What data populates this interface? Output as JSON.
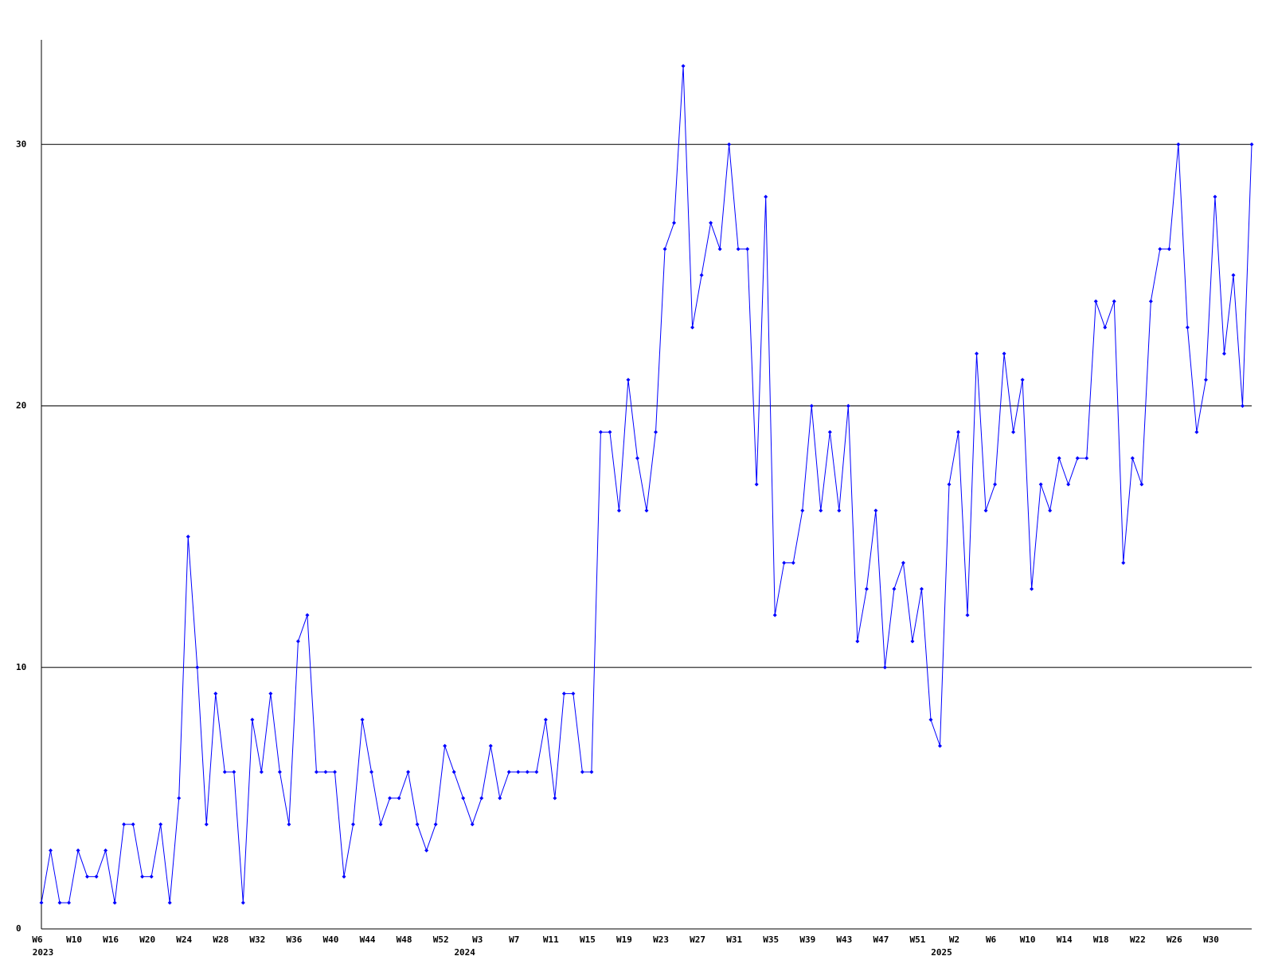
{
  "chart_data": {
    "type": "line",
    "color": "#0000ff",
    "grid_color": "#000000",
    "categories": [
      "W6",
      null,
      null,
      null,
      "W10",
      null,
      null,
      null,
      "W16",
      null,
      null,
      null,
      "W20",
      null,
      null,
      null,
      "W24",
      null,
      null,
      null,
      "W28",
      null,
      null,
      null,
      "W32",
      null,
      null,
      null,
      "W36",
      null,
      null,
      null,
      "W40",
      null,
      null,
      null,
      "W44",
      null,
      null,
      null,
      "W48",
      null,
      null,
      null,
      "W52",
      null,
      null,
      null,
      "W3",
      null,
      null,
      null,
      "W7",
      null,
      null,
      null,
      "W11",
      null,
      null,
      null,
      "W15",
      null,
      null,
      null,
      "W19",
      null,
      null,
      null,
      "W23",
      null,
      null,
      null,
      "W27",
      null,
      null,
      null,
      "W31",
      null,
      null,
      null,
      "W35",
      null,
      null,
      null,
      "W39",
      null,
      null,
      null,
      "W43",
      null,
      null,
      null,
      "W47",
      null,
      null,
      null,
      "W51",
      null,
      null,
      null,
      "W2",
      null,
      null,
      null,
      "W6",
      null,
      null,
      null,
      "W10",
      null,
      null,
      null,
      "W14",
      null,
      null,
      null,
      "W18",
      null,
      null,
      null,
      "W22",
      null,
      null,
      null,
      "W26",
      null,
      null,
      null,
      "W30",
      null,
      null,
      null,
      null
    ],
    "year_labels": [
      "2023",
      null,
      null,
      null,
      null,
      null,
      null,
      null,
      null,
      null,
      null,
      null,
      null,
      null,
      null,
      null,
      null,
      null,
      null,
      null,
      null,
      null,
      null,
      null,
      null,
      null,
      null,
      null,
      null,
      null,
      null,
      null,
      null,
      null,
      null,
      null,
      null,
      null,
      null,
      null,
      null,
      null,
      null,
      null,
      null,
      null,
      "2024",
      null,
      null,
      null,
      null,
      null,
      null,
      null,
      null,
      null,
      null,
      null,
      null,
      null,
      null,
      null,
      null,
      null,
      null,
      null,
      null,
      null,
      null,
      null,
      null,
      null,
      null,
      null,
      null,
      null,
      null,
      null,
      null,
      null,
      null,
      null,
      null,
      null,
      null,
      null,
      null,
      null,
      null,
      null,
      null,
      null,
      null,
      null,
      null,
      null,
      null,
      null,
      "2025",
      null,
      null,
      null,
      null,
      null,
      null,
      null,
      null,
      null,
      null,
      null,
      null,
      null,
      null,
      null,
      null,
      null,
      null,
      null,
      null,
      null,
      null,
      null,
      null,
      null,
      null,
      null,
      null,
      null,
      null,
      null,
      null,
      null,
      null
    ],
    "values": [
      1,
      3,
      1,
      1,
      3,
      2,
      2,
      3,
      1,
      4,
      4,
      2,
      2,
      4,
      1,
      5,
      15,
      10,
      4,
      9,
      6,
      6,
      1,
      8,
      6,
      9,
      6,
      4,
      11,
      12,
      6,
      6,
      6,
      2,
      4,
      8,
      6,
      4,
      5,
      5,
      6,
      4,
      3,
      4,
      7,
      6,
      5,
      4,
      5,
      7,
      5,
      6,
      6,
      6,
      6,
      8,
      5,
      9,
      9,
      6,
      6,
      19,
      19,
      16,
      21,
      18,
      16,
      19,
      26,
      27,
      33,
      23,
      25,
      27,
      26,
      30,
      26,
      26,
      17,
      28,
      12,
      14,
      14,
      16,
      20,
      16,
      19,
      16,
      20,
      11,
      13,
      16,
      10,
      13,
      14,
      11,
      13,
      8,
      7,
      17,
      19,
      12,
      22,
      16,
      17,
      22,
      19,
      21,
      13,
      17,
      16,
      18,
      17,
      18,
      18,
      24,
      23,
      24,
      14,
      18,
      17,
      24,
      26,
      26,
      30,
      23,
      19,
      21,
      28,
      22,
      25,
      20,
      30
    ],
    "ylim": [
      0,
      34
    ],
    "yticks": [
      0,
      10,
      20,
      30
    ],
    "grid": true
  }
}
